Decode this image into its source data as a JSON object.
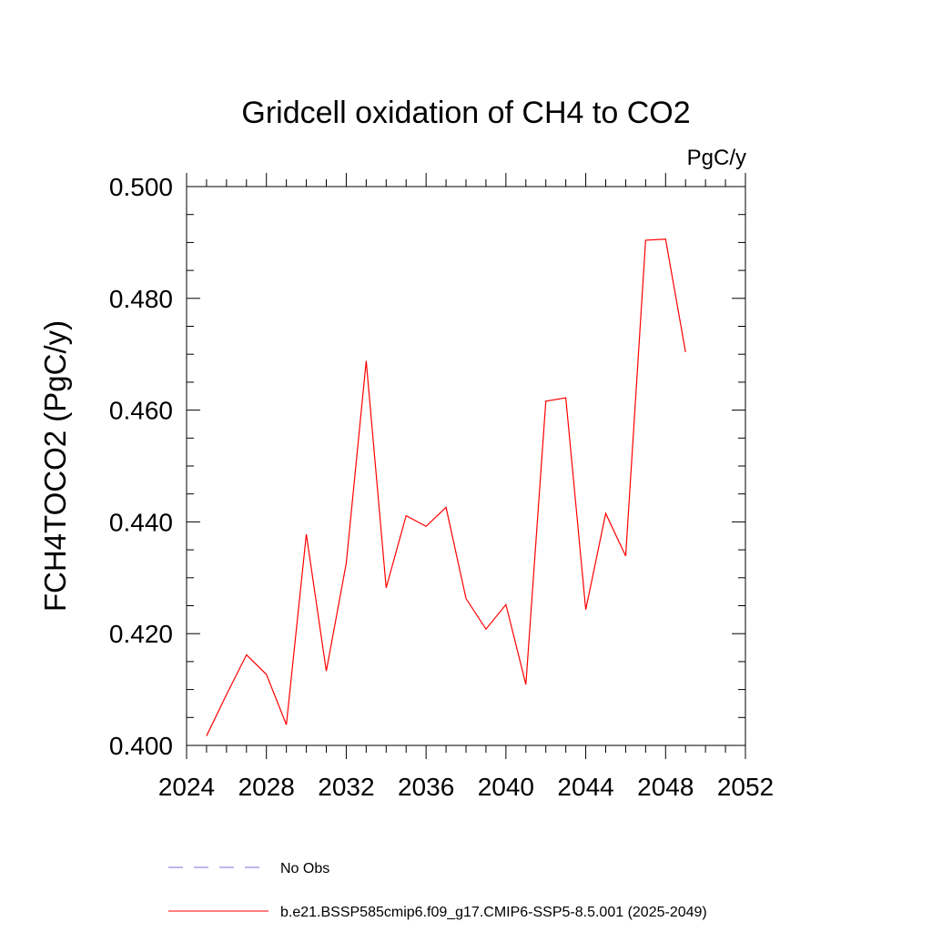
{
  "chart_data": {
    "type": "line",
    "title": "Gridcell oxidation of CH4 to CO2",
    "units": "PgC/y",
    "ylabel": "FCH4TOCO2  (PgC/y)",
    "xlabel": "",
    "xlim": [
      2024,
      2052
    ],
    "ylim": [
      0.4,
      0.5
    ],
    "x_ticks": [
      2024,
      2028,
      2032,
      2036,
      2040,
      2044,
      2048,
      2052
    ],
    "x_tick_labels": [
      "2024",
      "2028",
      "2032",
      "2036",
      "2040",
      "2044",
      "2048",
      "2052"
    ],
    "x_minor_step": 1,
    "y_ticks": [
      0.4,
      0.42,
      0.44,
      0.46,
      0.48,
      0.5
    ],
    "y_tick_labels": [
      "0.400",
      "0.420",
      "0.440",
      "0.460",
      "0.480",
      "0.500"
    ],
    "y_minor_step": 0.005,
    "grid": false,
    "legend_position": "bottom",
    "series": [
      {
        "name": "b.e21.BSSP585cmip6.f09_g17.CMIP6-SSP5-8.5.001 (2025-2049)",
        "color": "#ff0000",
        "style": "solid",
        "x": [
          2025,
          2026,
          2027,
          2028,
          2029,
          2030,
          2031,
          2032,
          2033,
          2034,
          2035,
          2036,
          2037,
          2038,
          2039,
          2040,
          2041,
          2042,
          2043,
          2044,
          2045,
          2046,
          2047,
          2048,
          2049
        ],
        "values": [
          0.4017,
          0.4091,
          0.4162,
          0.4127,
          0.4037,
          0.4378,
          0.4133,
          0.4326,
          0.4688,
          0.4282,
          0.4411,
          0.4392,
          0.4426,
          0.4263,
          0.4208,
          0.4252,
          0.4109,
          0.4616,
          0.4622,
          0.4243,
          0.4415,
          0.4339,
          0.4904,
          0.4906,
          0.4704
        ]
      }
    ],
    "legend": [
      {
        "label": "No Obs",
        "color": "#7b6fd8",
        "style": "dashed"
      },
      {
        "label": "b.e21.BSSP585cmip6.f09_g17.CMIP6-SSP5-8.5.001 (2025-2049)",
        "color": "#ff0000",
        "style": "solid"
      }
    ]
  }
}
